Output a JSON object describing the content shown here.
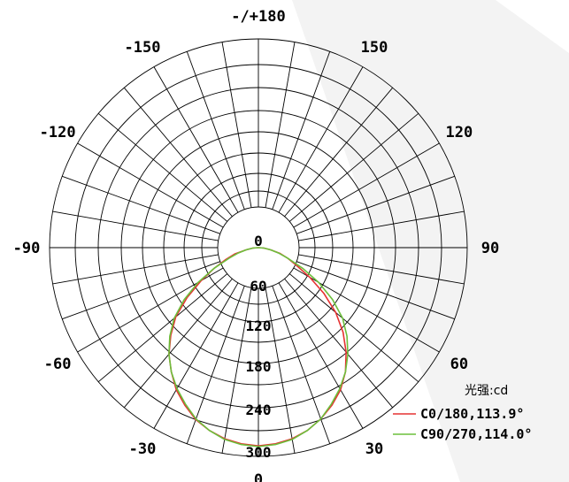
{
  "chart_data": {
    "type": "polar",
    "angle_labels": [
      {
        "deg": 0,
        "text": "0"
      },
      {
        "deg": 30,
        "text": "30"
      },
      {
        "deg": 60,
        "text": "60"
      },
      {
        "deg": 90,
        "text": "90"
      },
      {
        "deg": 120,
        "text": "120"
      },
      {
        "deg": 150,
        "text": "150"
      },
      {
        "deg": 180,
        "text": "-/+180"
      },
      {
        "deg": -150,
        "text": "-150"
      },
      {
        "deg": -120,
        "text": "-120"
      },
      {
        "deg": -90,
        "text": "-90"
      },
      {
        "deg": -60,
        "text": "-60"
      },
      {
        "deg": -30,
        "text": "-30"
      }
    ],
    "radial_ticks": [
      0,
      60,
      120,
      180,
      240,
      300
    ],
    "rmax": 300,
    "grid": true,
    "unit_label": "光强:cd",
    "legend_position": "bottom-right",
    "series": [
      {
        "name": "C0/180,113.9°",
        "color": "#e63232",
        "points": [
          [
            -90,
            0
          ],
          [
            -85,
            8
          ],
          [
            -80,
            18
          ],
          [
            -75,
            35
          ],
          [
            -70,
            50
          ],
          [
            -65,
            70
          ],
          [
            -60,
            95
          ],
          [
            -55,
            125
          ],
          [
            -50,
            155
          ],
          [
            -45,
            178
          ],
          [
            -40,
            200
          ],
          [
            -35,
            218
          ],
          [
            -30,
            236
          ],
          [
            -25,
            250
          ],
          [
            -20,
            263
          ],
          [
            -15,
            272
          ],
          [
            -10,
            279
          ],
          [
            -5,
            283
          ],
          [
            0,
            285
          ],
          [
            5,
            283
          ],
          [
            10,
            279
          ],
          [
            15,
            272
          ],
          [
            20,
            262
          ],
          [
            25,
            250
          ],
          [
            30,
            236
          ],
          [
            35,
            218
          ],
          [
            40,
            196
          ],
          [
            45,
            172
          ],
          [
            50,
            145
          ],
          [
            55,
            115
          ],
          [
            60,
            85
          ],
          [
            65,
            60
          ],
          [
            70,
            45
          ],
          [
            75,
            32
          ],
          [
            80,
            18
          ],
          [
            85,
            8
          ],
          [
            90,
            0
          ]
        ]
      },
      {
        "name": "C90/270,114.0°",
        "color": "#6cbf3c",
        "points": [
          [
            -90,
            0
          ],
          [
            -85,
            8
          ],
          [
            -80,
            18
          ],
          [
            -75,
            30
          ],
          [
            -70,
            45
          ],
          [
            -65,
            70
          ],
          [
            -60,
            100
          ],
          [
            -55,
            130
          ],
          [
            -50,
            158
          ],
          [
            -45,
            180
          ],
          [
            -40,
            200
          ],
          [
            -35,
            218
          ],
          [
            -30,
            234
          ],
          [
            -25,
            248
          ],
          [
            -20,
            262
          ],
          [
            -15,
            272
          ],
          [
            -10,
            280
          ],
          [
            -5,
            284
          ],
          [
            0,
            286
          ],
          [
            5,
            284
          ],
          [
            10,
            280
          ],
          [
            15,
            272
          ],
          [
            20,
            262
          ],
          [
            25,
            248
          ],
          [
            30,
            234
          ],
          [
            35,
            218
          ],
          [
            40,
            200
          ],
          [
            45,
            180
          ],
          [
            50,
            158
          ],
          [
            55,
            130
          ],
          [
            60,
            100
          ],
          [
            65,
            70
          ],
          [
            70,
            45
          ],
          [
            75,
            30
          ],
          [
            80,
            18
          ],
          [
            85,
            8
          ],
          [
            90,
            0
          ]
        ]
      }
    ]
  }
}
